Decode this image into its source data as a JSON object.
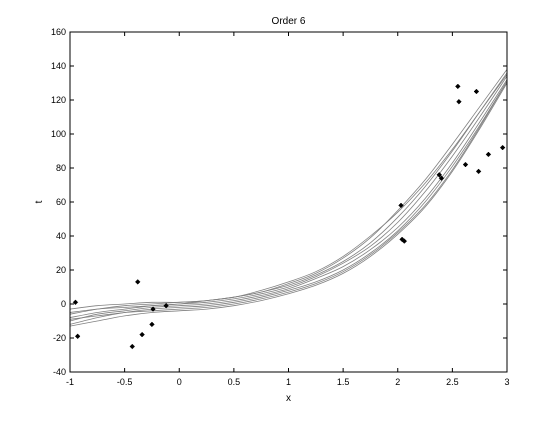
{
  "chart_data": {
    "type": "scatter",
    "title": "Order 6",
    "xlabel": "x",
    "ylabel": "t",
    "xlim": [
      -1,
      3
    ],
    "ylim": [
      -40,
      160
    ],
    "xticks": [
      -1,
      -0.5,
      0,
      0.5,
      1,
      1.5,
      2,
      2.5,
      3
    ],
    "yticks": [
      -40,
      -20,
      0,
      20,
      40,
      60,
      80,
      100,
      120,
      140,
      160
    ],
    "xtick_labels": [
      "-1",
      "-0.5",
      "0",
      "0.5",
      "1",
      "1.5",
      "2",
      "2.5",
      "3"
    ],
    "ytick_labels": [
      "-40",
      "-20",
      "0",
      "20",
      "40",
      "60",
      "80",
      "100",
      "120",
      "140",
      "160"
    ],
    "grid": false,
    "legend": "none",
    "colors": {
      "points": "#000000",
      "curves": "#808080",
      "axes": "#000000"
    },
    "points": {
      "x": [
        -0.95,
        -0.93,
        -0.43,
        -0.38,
        -0.34,
        -0.25,
        -0.24,
        -0.12,
        2.03,
        2.04,
        2.06,
        2.38,
        2.4,
        2.55,
        2.56,
        2.62,
        2.72,
        2.74,
        2.83,
        2.96
      ],
      "y": [
        1,
        -19,
        -25,
        13,
        -18,
        -12,
        -3,
        -1,
        58,
        38,
        37,
        76,
        74,
        128,
        119,
        82,
        125,
        78,
        88,
        92
      ]
    },
    "curves": {
      "x": [
        -1,
        -0.75,
        -0.5,
        -0.25,
        0,
        0.25,
        0.5,
        0.75,
        1,
        1.25,
        1.5,
        1.75,
        2,
        2.25,
        2.5,
        2.75,
        3
      ],
      "series": [
        {
          "values": [
            -3,
            -1,
            0,
            1,
            1,
            2,
            4,
            7,
            12,
            18,
            27,
            39,
            55,
            73,
            94,
            116,
            138
          ]
        },
        {
          "values": [
            -6,
            -3,
            -1,
            0,
            1,
            2,
            4,
            7,
            11,
            17,
            25,
            36,
            51,
            69,
            90,
            113,
            136
          ]
        },
        {
          "values": [
            -8,
            -5,
            -3,
            -1,
            0,
            1,
            3,
            6,
            10,
            16,
            24,
            34,
            48,
            66,
            87,
            110,
            134
          ]
        },
        {
          "values": [
            -10,
            -6,
            -4,
            -2,
            -1,
            0,
            2,
            5,
            9,
            15,
            22,
            32,
            45,
            62,
            83,
            107,
            132
          ]
        },
        {
          "values": [
            -12,
            -8,
            -5,
            -3,
            -2,
            -1,
            1,
            4,
            8,
            13,
            20,
            30,
            43,
            60,
            81,
            105,
            131
          ]
        },
        {
          "values": [
            -13,
            -10,
            -7,
            -5,
            -4,
            -3,
            -1,
            2,
            6,
            11,
            18,
            28,
            41,
            57,
            78,
            103,
            130
          ]
        },
        {
          "values": [
            -5,
            -3,
            -2,
            -1,
            0,
            2,
            4,
            8,
            13,
            19,
            28,
            40,
            54,
            71,
            91,
            113,
            135
          ]
        },
        {
          "values": [
            -9,
            -7,
            -5,
            -4,
            -3,
            -2,
            0,
            3,
            7,
            12,
            19,
            29,
            42,
            58,
            79,
            104,
            131
          ]
        }
      ]
    }
  }
}
